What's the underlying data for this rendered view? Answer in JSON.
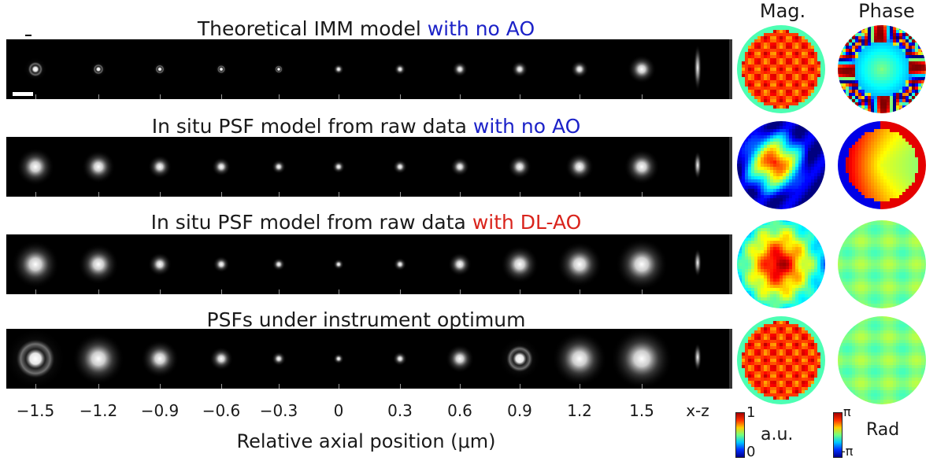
{
  "column_headers": {
    "magnitude": "Mag.",
    "phase": "Phase"
  },
  "rows": [
    {
      "title_main": "Theoretical IMM model ",
      "title_highlight": "with no AO",
      "highlight_color": "#1c22c8",
      "psf_sigma": [
        0.1,
        0.07,
        0.06,
        0.055,
        0.05,
        0.045,
        0.05,
        0.065,
        0.07,
        0.075,
        0.12
      ],
      "psf_ring": [
        1,
        1,
        1,
        1,
        0.6,
        0,
        0,
        0,
        0,
        0,
        0
      ],
      "mag_pattern": "grid",
      "phase_pattern": "rings"
    },
    {
      "title_main": "In situ PSF model from raw data ",
      "title_highlight": "with no AO",
      "highlight_color": "#1c22c8",
      "psf_sigma": [
        0.16,
        0.14,
        0.1,
        0.08,
        0.06,
        0.055,
        0.06,
        0.08,
        0.1,
        0.12,
        0.15
      ],
      "psf_ring": [
        0,
        0,
        0,
        0,
        0,
        0,
        0,
        0,
        0,
        0,
        0
      ],
      "mag_pattern": "blob",
      "phase_pattern": "tilt"
    },
    {
      "title_main": "In situ PSF model from raw data ",
      "title_highlight": "with DL-AO",
      "highlight_color": "#d9241c",
      "psf_sigma": [
        0.2,
        0.17,
        0.1,
        0.07,
        0.055,
        0.045,
        0.055,
        0.1,
        0.16,
        0.19,
        0.22
      ],
      "psf_ring": [
        0,
        0,
        0,
        0,
        0,
        0,
        0,
        0,
        0,
        0,
        0
      ],
      "mag_pattern": "blob-large",
      "phase_pattern": "flat"
    },
    {
      "title_main": "PSFs under instrument optimum",
      "title_highlight": "",
      "highlight_color": "#1c22c8",
      "psf_sigma": [
        0.26,
        0.22,
        0.16,
        0.1,
        0.06,
        0.045,
        0.06,
        0.12,
        0.18,
        0.23,
        0.26
      ],
      "psf_ring": [
        1,
        0,
        0,
        0,
        0,
        0,
        0,
        0,
        1,
        0,
        0
      ],
      "mag_pattern": "grid",
      "phase_pattern": "flat"
    }
  ],
  "axis": {
    "ticks": [
      "−1.5",
      "−1.2",
      "−0.9",
      "−0.6",
      "−0.3",
      "0",
      "0.3",
      "0.6",
      "0.9",
      "1.2",
      "1.5",
      "x-z"
    ],
    "label": "Relative axial position (μm)"
  },
  "colorbars": {
    "magnitude": {
      "max": "1",
      "min": "0",
      "unit": "a.u."
    },
    "phase": {
      "max": "π",
      "min": "-π",
      "unit": "Rad"
    }
  }
}
